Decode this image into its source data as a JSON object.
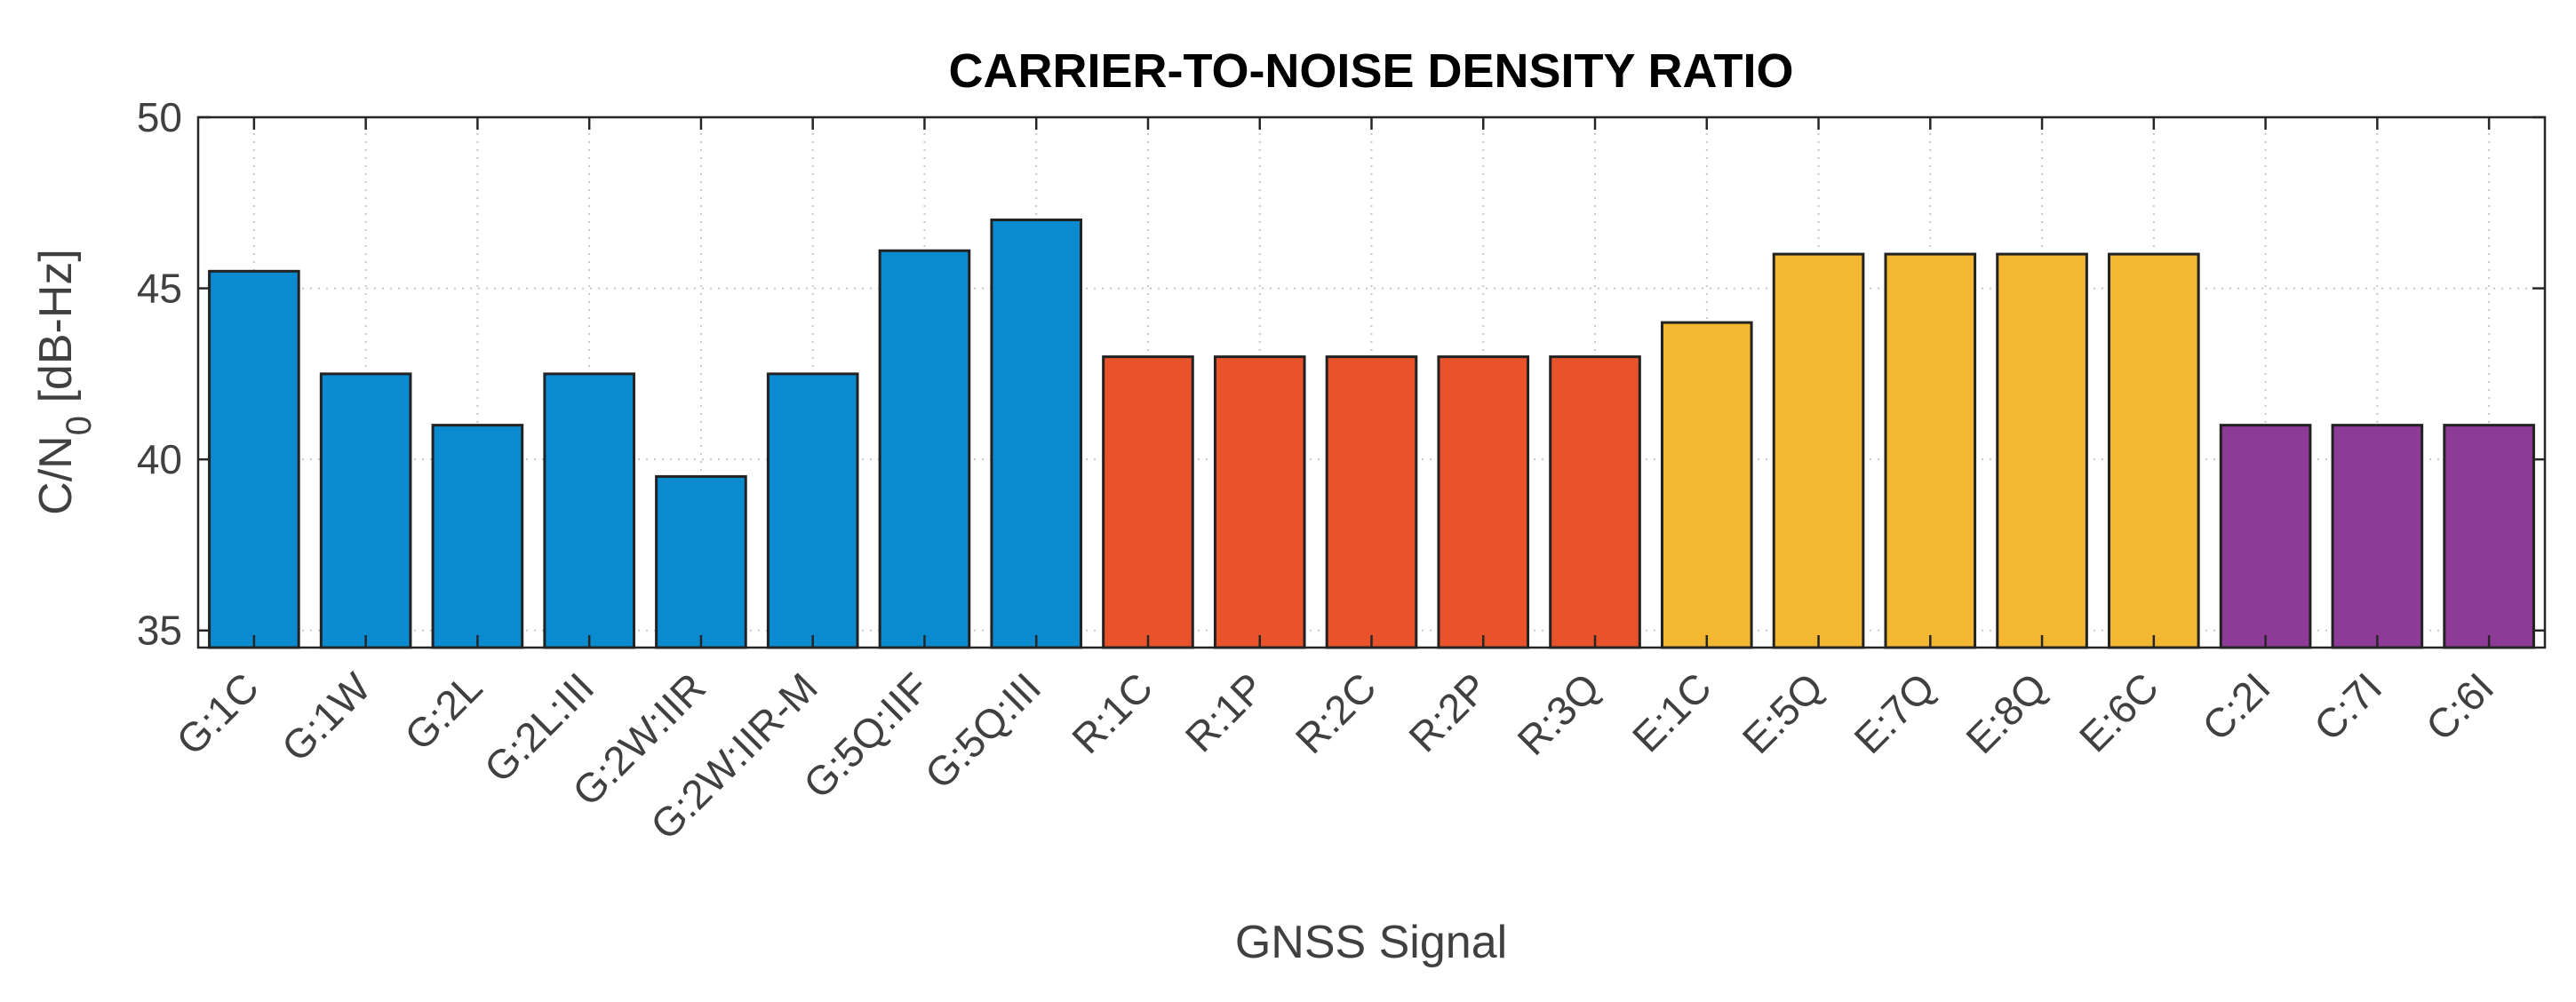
{
  "chart_data": {
    "type": "bar",
    "title": "CARRIER-TO-NOISE DENSITY RATIO",
    "xlabel": "GNSS Signal",
    "ylabel": "C/N",
    "ylabel_subscript": "0",
    "ylabel_unit": " [dB-Hz]",
    "ylim": [
      34.5,
      50
    ],
    "yticks": [
      35,
      40,
      45,
      50
    ],
    "grid": true,
    "categories": [
      "G:1C",
      "G:1W",
      "G:2L",
      "G:2L:III",
      "G:2W:IIR",
      "G:2W:IIR-M",
      "G:5Q:IIF",
      "G:5Q:III",
      "R:1C",
      "R:1P",
      "R:2C",
      "R:2P",
      "R:3Q",
      "E:1C",
      "E:5Q",
      "E:7Q",
      "E:8Q",
      "E:6C",
      "C:2I",
      "C:7I",
      "C:6I"
    ],
    "values": [
      45.5,
      42.5,
      41,
      42.5,
      39.5,
      42.5,
      46.1,
      47,
      43,
      43,
      43,
      43,
      43,
      44,
      46,
      46,
      46,
      46,
      41,
      41,
      41
    ],
    "bar_colors": [
      "#0a8bcf",
      "#0a8bcf",
      "#0a8bcf",
      "#0a8bcf",
      "#0a8bcf",
      "#0a8bcf",
      "#0a8bcf",
      "#0a8bcf",
      "#e8532b",
      "#e8532b",
      "#e8532b",
      "#e8532b",
      "#e8532b",
      "#f4b731",
      "#f4b731",
      "#f4b731",
      "#f4b731",
      "#f4b731",
      "#8e3a97",
      "#8e3a97",
      "#8e3a97"
    ]
  }
}
